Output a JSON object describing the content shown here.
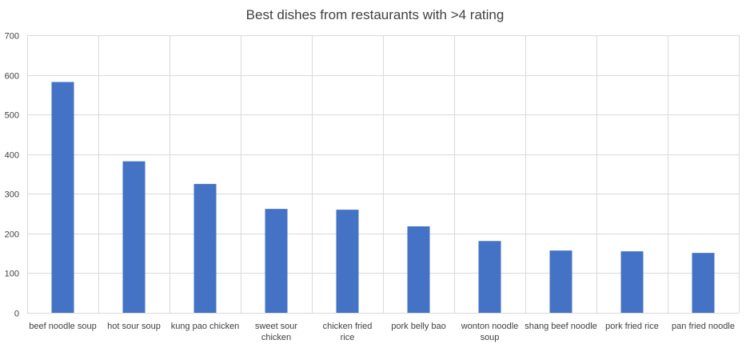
{
  "chart_data": {
    "type": "bar",
    "title": "Best dishes from restaurants with >4 rating",
    "xlabel": "",
    "ylabel": "",
    "ylim": [
      0,
      700
    ],
    "yticks": [
      0,
      100,
      200,
      300,
      400,
      500,
      600,
      700
    ],
    "grid": true,
    "legend": "none",
    "bar_color": "#4472c4",
    "categories": [
      "beef noodle soup",
      "hot sour soup",
      "kung pao chicken",
      "sweet sour chicken",
      "chicken fried rice",
      "pork belly bao",
      "wonton noodle soup",
      "shang beef noodle",
      "pork fried rice",
      "pan fried noodle"
    ],
    "values": [
      582,
      382,
      325,
      262,
      260,
      218,
      181,
      157,
      155,
      151
    ]
  }
}
